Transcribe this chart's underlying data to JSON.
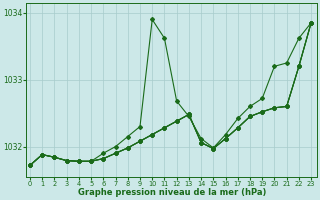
{
  "xlabel": "Graphe pression niveau de la mer (hPa)",
  "bg_color": "#cce8e8",
  "line_color": "#1a6b1a",
  "grid_color": "#a8cccc",
  "x_ticks": [
    0,
    1,
    2,
    3,
    4,
    5,
    6,
    7,
    8,
    9,
    10,
    11,
    12,
    13,
    14,
    15,
    16,
    17,
    18,
    19,
    20,
    21,
    22,
    23
  ],
  "y_ticks": [
    1032,
    1033,
    1034
  ],
  "ylim": [
    1031.55,
    1034.15
  ],
  "xlim": [
    -0.3,
    23.5
  ],
  "series": [
    [
      1031.72,
      1031.88,
      1031.84,
      1031.79,
      1031.78,
      1031.78,
      1031.9,
      1032.0,
      1032.15,
      1032.3,
      1033.9,
      1033.62,
      1032.68,
      1032.45,
      1032.12,
      1031.98,
      1032.18,
      1032.42,
      1032.6,
      1032.72,
      1033.2,
      1033.25,
      1033.62,
      1033.85
    ],
    [
      1031.72,
      1031.88,
      1031.84,
      1031.79,
      1031.78,
      1031.78,
      1031.82,
      1031.9,
      1031.98,
      1032.08,
      1032.18,
      1032.28,
      1032.38,
      1032.48,
      1032.06,
      1031.97,
      1032.12,
      1032.28,
      1032.45,
      1032.52,
      1032.58,
      1032.6,
      1033.2,
      1033.85
    ],
    [
      1031.72,
      1031.88,
      1031.84,
      1031.79,
      1031.78,
      1031.78,
      1031.82,
      1031.9,
      1031.98,
      1032.08,
      1032.18,
      1032.28,
      1032.38,
      1032.48,
      1032.06,
      1031.97,
      1032.12,
      1032.28,
      1032.45,
      1032.52,
      1032.58,
      1032.6,
      1033.2,
      1033.85
    ],
    [
      1031.72,
      1031.88,
      1031.84,
      1031.79,
      1031.78,
      1031.78,
      1031.82,
      1031.9,
      1031.98,
      1032.08,
      1032.18,
      1032.28,
      1032.38,
      1032.48,
      1032.06,
      1031.97,
      1032.12,
      1032.28,
      1032.45,
      1032.52,
      1032.58,
      1032.6,
      1033.2,
      1033.85
    ]
  ],
  "marker": "D",
  "markersize": 2.0,
  "linewidth": 0.8
}
